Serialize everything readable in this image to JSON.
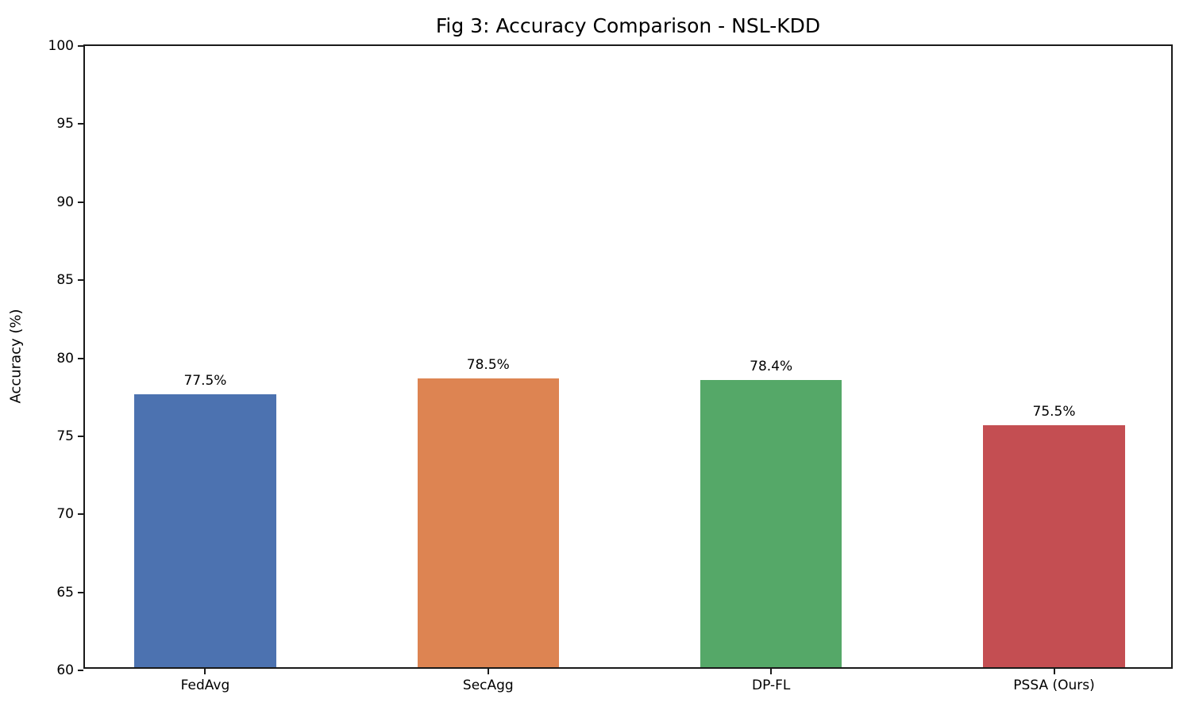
{
  "figure": {
    "title": "Fig 3: Accuracy Comparison - NSL-KDD",
    "ylabel": "Accuracy (%)"
  },
  "chart_data": {
    "type": "bar",
    "title": "Fig 3: Accuracy Comparison - NSL-KDD",
    "xlabel": "",
    "ylabel": "Accuracy (%)",
    "categories": [
      "FedAvg",
      "SecAgg",
      "DP-FL",
      "PSSA (Ours)"
    ],
    "values": [
      77.5,
      78.5,
      78.4,
      75.5
    ],
    "bar_labels": [
      "77.5%",
      "78.5%",
      "78.4%",
      "75.5%"
    ],
    "bar_colors": [
      "#4c72b0",
      "#dd8452",
      "#55a868",
      "#c44e52"
    ],
    "ylim": [
      60,
      100
    ],
    "yticks": [
      60,
      65,
      70,
      75,
      80,
      85,
      90,
      95,
      100
    ],
    "grid": false,
    "legend": "none"
  }
}
